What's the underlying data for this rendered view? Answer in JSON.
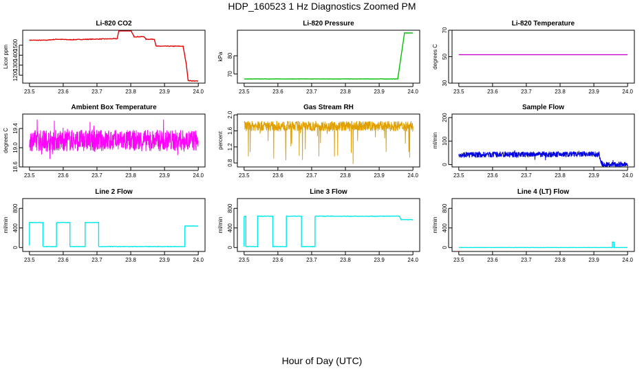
{
  "figure": {
    "title": "HDP_160523  1 Hz Diagnostics Zoomed PM",
    "xlabel": "Hour of Day (UTC)"
  },
  "chart_data": [
    {
      "type": "line",
      "title": "Li-820 CO2",
      "ylabel": "Licor ppm",
      "color": "#e00000",
      "xlim": [
        23.48,
        24.02
      ],
      "ylim": [
        1120,
        1650
      ],
      "xticks": [
        "23.5",
        "23.6",
        "23.7",
        "23.8",
        "23.9",
        "24.0"
      ],
      "yticks": [
        "1200",
        "1300",
        "1400",
        "1500"
      ],
      "noise": 6,
      "series": [
        {
          "name": "CO2",
          "x": [
            23.5,
            23.55,
            23.58,
            23.62,
            23.68,
            23.76,
            23.765,
            23.8,
            23.81,
            23.84,
            23.845,
            23.87,
            23.875,
            23.955,
            23.965,
            23.97,
            24.0
          ],
          "y": [
            1550,
            1550,
            1560,
            1555,
            1560,
            1565,
            1650,
            1650,
            1585,
            1585,
            1560,
            1560,
            1490,
            1490,
            1300,
            1145,
            1140
          ]
        }
      ]
    },
    {
      "type": "line",
      "title": "Li-820 Pressure",
      "ylabel": "kPa",
      "color": "#00c000",
      "xlim": [
        23.48,
        24.02
      ],
      "ylim": [
        65,
        94
      ],
      "xticks": [
        "23.5",
        "23.6",
        "23.7",
        "23.8",
        "23.9",
        "24.0"
      ],
      "yticks": [
        "70",
        "80"
      ],
      "noise": 0.15,
      "series": [
        {
          "name": "Pressure",
          "x": [
            23.5,
            23.95,
            23.955,
            23.965,
            23.975,
            24.0
          ],
          "y": [
            67.3,
            67.3,
            67.3,
            80.0,
            92.5,
            92.5
          ]
        }
      ]
    },
    {
      "type": "line",
      "title": "Li-820 Temperature",
      "ylabel": "degrees C",
      "color": "#d000d0",
      "xlim": [
        23.48,
        24.02
      ],
      "ylim": [
        30,
        70
      ],
      "xticks": [
        "23.5",
        "23.6",
        "23.7",
        "23.8",
        "23.9",
        "24.0"
      ],
      "yticks": [
        "30",
        "50",
        "70"
      ],
      "noise": 0,
      "series": [
        {
          "name": "Temperature",
          "x": [
            23.5,
            24.0
          ],
          "y": [
            51.5,
            51.5
          ]
        }
      ]
    },
    {
      "type": "line",
      "title": "Ambient Box Temperature",
      "ylabel": "degrees C",
      "color": "#ff00ff",
      "xlim": [
        23.48,
        24.02
      ],
      "ylim": [
        18.6,
        19.7
      ],
      "xticks": [
        "23.5",
        "23.6",
        "23.7",
        "23.8",
        "23.9",
        "24.0"
      ],
      "yticks": [
        "18.6",
        "19.0",
        "19.4"
      ],
      "noise": 0.45,
      "dense": true,
      "series": [
        {
          "name": "Box Temp",
          "x": [
            23.5,
            24.0
          ],
          "y": [
            19.15,
            19.15
          ]
        }
      ]
    },
    {
      "type": "line",
      "title": "Gas Stream RH",
      "ylabel": "percent",
      "color": "#e0a000",
      "xlim": [
        23.48,
        24.02
      ],
      "ylim": [
        0.7,
        2.02
      ],
      "xticks": [
        "23.5",
        "23.6",
        "23.7",
        "23.8",
        "23.9",
        "24.0"
      ],
      "yticks": [
        "0.8",
        "1.2",
        "1.6",
        "2.0"
      ],
      "noise": 0.25,
      "dense": true,
      "spikes_down": true,
      "series": [
        {
          "name": "RH",
          "x": [
            23.5,
            24.0
          ],
          "y": [
            1.72,
            1.72
          ]
        }
      ]
    },
    {
      "type": "line",
      "title": "Sample Flow",
      "ylabel": "ml/min",
      "color": "#0000e0",
      "xlim": [
        23.48,
        24.02
      ],
      "ylim": [
        -10,
        215
      ],
      "xticks": [
        "23.5",
        "23.6",
        "23.7",
        "23.8",
        "23.9",
        "24.0"
      ],
      "yticks": [
        "0",
        "100",
        "200"
      ],
      "noise": 25,
      "dense": true,
      "series": [
        {
          "name": "Sample Flow",
          "x": [
            23.5,
            23.91,
            23.915,
            23.925,
            24.0
          ],
          "y": [
            42,
            44,
            44,
            0,
            -1
          ]
        }
      ]
    },
    {
      "type": "line",
      "title": "Line 2 Flow",
      "ylabel": "ml/min",
      "color": "#00e8e8",
      "xlim": [
        23.48,
        24.02
      ],
      "ylim": [
        -80,
        1000
      ],
      "xticks": [
        "23.5",
        "23.6",
        "23.7",
        "23.8",
        "23.9",
        "24.0"
      ],
      "yticks": [
        "0",
        "400",
        "800"
      ],
      "noise": 10,
      "series": [
        {
          "name": "Line 2",
          "x": [
            23.5,
            23.5,
            23.54,
            23.54,
            23.58,
            23.58,
            23.62,
            23.62,
            23.665,
            23.665,
            23.705,
            23.705,
            23.96,
            23.96,
            24.0
          ],
          "y": [
            40,
            510,
            510,
            20,
            20,
            510,
            510,
            20,
            20,
            510,
            510,
            20,
            20,
            440,
            440
          ]
        }
      ]
    },
    {
      "type": "line",
      "title": "Line 3 Flow",
      "ylabel": "ml/min",
      "color": "#00e8e8",
      "xlim": [
        23.48,
        24.02
      ],
      "ylim": [
        -80,
        1000
      ],
      "xticks": [
        "23.5",
        "23.6",
        "23.7",
        "23.8",
        "23.9",
        "24.0"
      ],
      "yticks": [
        "0",
        "400",
        "800"
      ],
      "noise": 10,
      "series": [
        {
          "name": "Line 3",
          "x": [
            23.5,
            23.5,
            23.505,
            23.505,
            23.54,
            23.54,
            23.585,
            23.585,
            23.625,
            23.625,
            23.67,
            23.67,
            23.71,
            23.71,
            23.96,
            23.965,
            24.0
          ],
          "y": [
            20,
            640,
            640,
            20,
            20,
            640,
            640,
            20,
            20,
            640,
            640,
            20,
            20,
            640,
            640,
            570,
            570
          ]
        }
      ]
    },
    {
      "type": "line",
      "title": "Line 4 (LT) Flow",
      "ylabel": "ml/min",
      "color": "#00e8e8",
      "xlim": [
        23.48,
        24.02
      ],
      "ylim": [
        -80,
        1000
      ],
      "xticks": [
        "23.5",
        "23.6",
        "23.7",
        "23.8",
        "23.9",
        "24.0"
      ],
      "yticks": [
        "0",
        "400",
        "800"
      ],
      "noise": 4,
      "series": [
        {
          "name": "Line 4",
          "x": [
            23.5,
            23.955,
            23.955,
            23.96,
            23.96,
            24.0
          ],
          "y": [
            0,
            0,
            110,
            110,
            0,
            0
          ]
        }
      ]
    }
  ]
}
